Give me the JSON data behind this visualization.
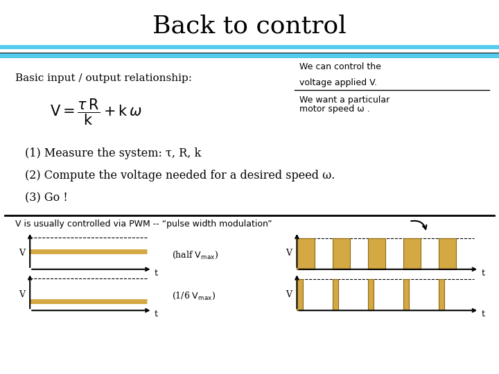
{
  "title": "Back to control",
  "title_fontsize": 26,
  "bg_color": "#ffffff",
  "cyan_color": "#55CCEE",
  "dark_color": "#000000",
  "basic_io_text": "Basic input / output relationship:",
  "right_text1_line1": "We can control the",
  "right_text1_line2": "voltage applied V.",
  "right_text2_line1": "We want a particular",
  "right_text2_line2": "motor speed ω .",
  "item1": "(1) Measure the system: τ, R, k",
  "item2": "(2) Compute the voltage needed for a desired speed ω.",
  "item3": "(3) Go !",
  "pwm_text": "V is usually controlled via PWM -- “pulse width modulation”",
  "signal_color": "#D4A843",
  "signal_color_edge": "#8B6914"
}
